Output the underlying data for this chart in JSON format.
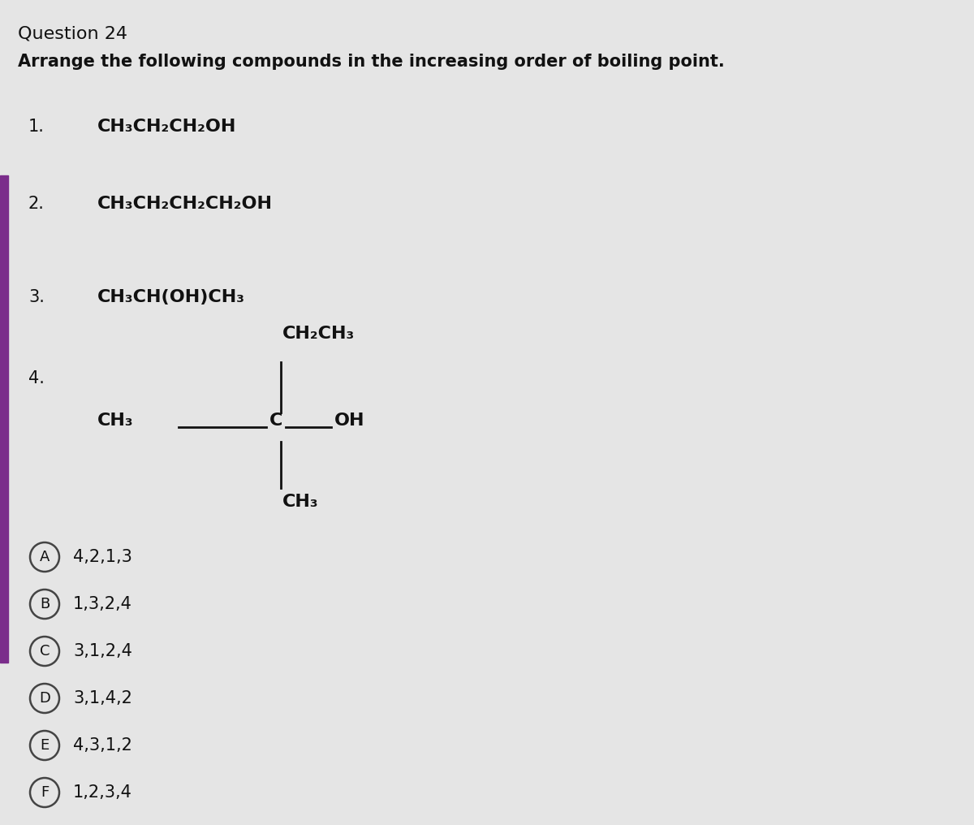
{
  "title": "Question 24",
  "question": "Arrange the following compounds in the increasing order of boiling point.",
  "bg_color": "#e5e5e5",
  "left_bar_color": "#7b2d8b",
  "title_fontsize": 16,
  "question_fontsize": 15,
  "compound_num_fontsize": 15,
  "compound_fontsize": 16,
  "option_fontsize": 15,
  "option_label_fontsize": 13,
  "compound1": "CH₃CH₂CH₂OH",
  "compound2": "CH₃CH₂CH₂CH₂OH",
  "compound3": "CH₃CH(OH)CH₃",
  "struct_top": "CH₂CH₃",
  "struct_left": "CH₃",
  "struct_center": "C",
  "struct_right": "OH",
  "struct_bottom": "CH₃",
  "options": [
    {
      "label": "A",
      "text": "4,2,1,3"
    },
    {
      "label": "B",
      "text": "1,3,2,4"
    },
    {
      "label": "C",
      "text": "3,1,2,4"
    },
    {
      "label": "D",
      "text": "3,1,4,2"
    },
    {
      "label": "E",
      "text": "4,3,1,2"
    },
    {
      "label": "F",
      "text": "1,2,3,4"
    }
  ]
}
